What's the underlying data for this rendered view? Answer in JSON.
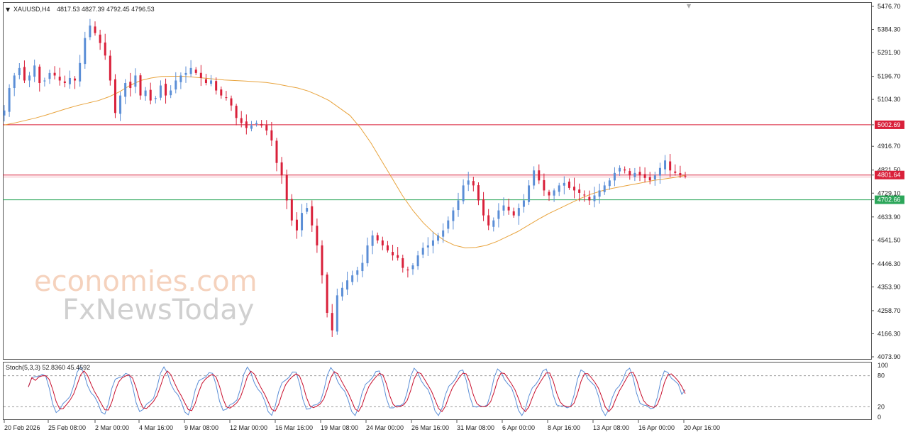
{
  "header": {
    "symbol": "XAUUSD,H4",
    "ohlc": "4817.53 4827.39 4792.45 4796.53"
  },
  "watermark": {
    "line1": "economies.com",
    "line2": "FxNewsToday"
  },
  "colors": {
    "bull": "#5b8ed6",
    "bear": "#d9203a",
    "ma": "#e8a33c",
    "stoch_main": "#5b8ed6",
    "stoch_signal": "#c8102e",
    "red_level": "#d9203a",
    "green_level": "#2ca65a"
  },
  "chart_data": [
    {
      "type": "candlestick",
      "symbol": "XAUUSD",
      "timeframe": "H4",
      "y_ticks": [
        "5476.70",
        "5384.30",
        "5291.90",
        "5196.70",
        "5104.30",
        "5002.69",
        "4916.70",
        "4821.50",
        "4801.64",
        "4729.10",
        "4702.66",
        "4633.90",
        "4541.50",
        "4446.30",
        "4353.90",
        "4258.70",
        "4166.30",
        "4073.90"
      ],
      "ylim": [
        4060,
        5480
      ],
      "x_ticks": [
        "20 Feb 2026",
        "25 Feb 08:00",
        "2 Mar 00:00",
        "4 Mar 16:00",
        "9 Mar 08:00",
        "12 Mar 00:00",
        "16 Mar 16:00",
        "19 Mar 08:00",
        "24 Mar 00:00",
        "26 Mar 16:00",
        "31 Mar 08:00",
        "6 Apr 00:00",
        "8 Apr 16:00",
        "13 Apr 08:00",
        "16 Apr 00:00",
        "20 Apr 16:00"
      ],
      "levels": [
        {
          "value": 5002.69,
          "label": "5002.69",
          "color": "#d9203a"
        },
        {
          "value": 4801.64,
          "label": "4801.64",
          "color": "#d9203a"
        },
        {
          "value": 4702.66,
          "label": "4702.66",
          "color": "#2ca65a"
        }
      ],
      "close_path": [
        5060,
        5150,
        5200,
        5230,
        5180,
        5200,
        5240,
        5170,
        5180,
        5210,
        5200,
        5180,
        5170,
        5190,
        5180,
        5250,
        5350,
        5400,
        5370,
        5330,
        5280,
        5180,
        5050,
        5120,
        5170,
        5150,
        5200,
        5120,
        5140,
        5100,
        5110,
        5160,
        5120,
        5140,
        5180,
        5200,
        5210,
        5230,
        5210,
        5190,
        5170,
        5180,
        5140,
        5120,
        5110,
        5080,
        5030,
        5010,
        4990,
        5000,
        5010,
        5000,
        4980,
        4940,
        4850,
        4800,
        4700,
        4620,
        4580,
        4650,
        4670,
        4600,
        4520,
        4400,
        4250,
        4180,
        4320,
        4350,
        4380,
        4400,
        4420,
        4450,
        4520,
        4560,
        4540,
        4520,
        4500,
        4480,
        4470,
        4430,
        4420,
        4440,
        4480,
        4510,
        4520,
        4540,
        4560,
        4580,
        4620,
        4660,
        4700,
        4760,
        4780,
        4760,
        4700,
        4640,
        4600,
        4620,
        4660,
        4680,
        4660,
        4640,
        4670,
        4700,
        4760,
        4820,
        4780,
        4740,
        4720,
        4740,
        4760,
        4770,
        4750,
        4740,
        4730,
        4720,
        4700,
        4720,
        4740,
        4760,
        4780,
        4810,
        4830,
        4820,
        4800,
        4810,
        4800,
        4790,
        4780,
        4800,
        4830,
        4860,
        4820,
        4810,
        4800,
        4796
      ],
      "ma_path": [
        5002,
        5010,
        5020,
        5030,
        5042,
        5055,
        5068,
        5080,
        5090,
        5100,
        5115,
        5135,
        5160,
        5180,
        5190,
        5196,
        5197,
        5197,
        5194,
        5190,
        5186,
        5182,
        5180,
        5178,
        5175,
        5172,
        5166,
        5158,
        5150,
        5138,
        5120,
        5100,
        5070,
        5040,
        4990,
        4930,
        4860,
        4790,
        4720,
        4660,
        4610,
        4570,
        4540,
        4520,
        4510,
        4512,
        4520,
        4535,
        4555,
        4575,
        4600,
        4625,
        4648,
        4668,
        4688,
        4708,
        4725,
        4738,
        4748,
        4756,
        4764,
        4772,
        4780,
        4786,
        4792,
        4800
      ],
      "stochastic": {
        "label": "Stoch(5,3,3) 52.8360 45.4592",
        "main": 52.836,
        "signal": 45.4592,
        "levels": [
          80,
          20
        ],
        "ticks": [
          "100",
          "80",
          "20",
          "0"
        ],
        "ylim": [
          0,
          100
        ]
      }
    }
  ]
}
